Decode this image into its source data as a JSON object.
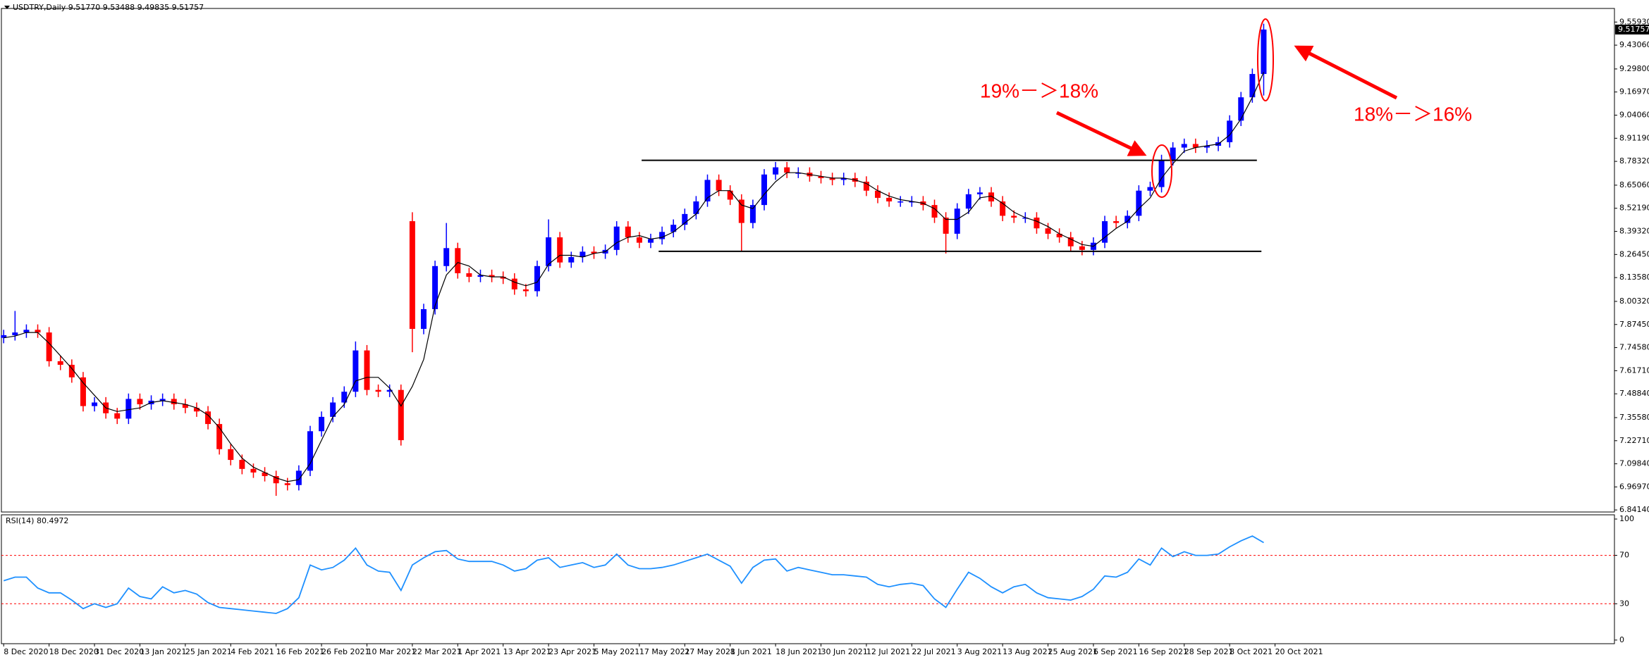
{
  "chart_data": [
    {
      "type": "candlestick",
      "title": "USDTRY,Daily  9.51770 9.53488 9.49835 9.51757",
      "up_color": "#0000ff",
      "down_color": "#ff0000",
      "ma_color": "#000000",
      "xlim": [
        -0.2,
        141.9
      ],
      "ylim": [
        6.83,
        9.635
      ],
      "grid": false,
      "yticks": [
        {
          "value": 9.5593,
          "label": "9.55930"
        },
        {
          "value": 9.4306,
          "label": "9.43060"
        },
        {
          "value": 9.298,
          "label": "9.29800"
        },
        {
          "value": 9.1697,
          "label": "9.16970"
        },
        {
          "value": 9.0406,
          "label": "9.04060"
        },
        {
          "value": 8.9119,
          "label": "8.91190"
        },
        {
          "value": 8.7832,
          "label": "8.78320"
        },
        {
          "value": 8.6506,
          "label": "8.65060"
        },
        {
          "value": 8.5219,
          "label": "8.52190"
        },
        {
          "value": 8.3932,
          "label": "8.39320"
        },
        {
          "value": 8.2645,
          "label": "8.26450"
        },
        {
          "value": 8.1358,
          "label": "8.13580"
        },
        {
          "value": 8.0032,
          "label": "8.00320"
        },
        {
          "value": 7.8745,
          "label": "7.87450"
        },
        {
          "value": 7.7458,
          "label": "7.74580"
        },
        {
          "value": 7.6171,
          "label": "7.61710"
        },
        {
          "value": 7.4884,
          "label": "7.48840"
        },
        {
          "value": 7.3558,
          "label": "7.35580"
        },
        {
          "value": 7.2271,
          "label": "7.22710"
        },
        {
          "value": 7.0984,
          "label": "7.09840"
        },
        {
          "value": 6.9697,
          "label": "6.96970"
        },
        {
          "value": 6.8414,
          "label": "6.84140"
        }
      ],
      "last_price": 9.51757,
      "annotations": [
        "19%－＞18%",
        "18%－＞16%"
      ],
      "lines": [
        {
          "y": 8.789,
          "x": [
            56.2,
            110.4
          ]
        },
        {
          "y": 8.282,
          "x": [
            57.7,
            110.8
          ]
        }
      ],
      "open": [
        7.8,
        7.815,
        7.83,
        7.845,
        7.83,
        7.67,
        7.65,
        7.58,
        7.42,
        7.44,
        7.38,
        7.35,
        7.46,
        7.43,
        7.45,
        7.46,
        7.43,
        7.41,
        7.39,
        7.32,
        7.18,
        7.12,
        7.07,
        7.05,
        7.03,
        6.99,
        6.98,
        7.06,
        7.28,
        7.36,
        7.44,
        7.5,
        7.73,
        7.51,
        7.5,
        7.51,
        8.45,
        7.85,
        7.96,
        8.2,
        8.3,
        8.16,
        8.14,
        8.15,
        8.14,
        8.13,
        8.07,
        8.06,
        8.2,
        8.36,
        8.22,
        8.25,
        8.28,
        8.27,
        8.29,
        8.42,
        8.36,
        8.33,
        8.35,
        8.39,
        8.43,
        8.49,
        8.56,
        8.68,
        8.62,
        8.57,
        8.44,
        8.54,
        8.71,
        8.75,
        8.72,
        8.72,
        8.7,
        8.69,
        8.68,
        8.69,
        8.67,
        8.62,
        8.58,
        8.56,
        8.56,
        8.56,
        8.54,
        8.47,
        8.38,
        8.52,
        8.6,
        8.61,
        8.56,
        8.48,
        8.47,
        8.47,
        8.41,
        8.38,
        8.36,
        8.31,
        8.29,
        8.33,
        8.45,
        8.44,
        8.48,
        8.62,
        8.64,
        8.79,
        8.86,
        8.88,
        8.86,
        8.87,
        8.89,
        9.01,
        9.14,
        9.27
      ],
      "high": [
        7.845,
        7.95,
        7.875,
        7.875,
        7.86,
        7.7,
        7.68,
        7.61,
        7.47,
        7.47,
        7.41,
        7.49,
        7.49,
        7.48,
        7.49,
        7.49,
        7.46,
        7.44,
        7.42,
        7.35,
        7.21,
        7.15,
        7.1,
        7.08,
        7.06,
        7.02,
        7.09,
        7.31,
        7.39,
        7.47,
        7.53,
        7.78,
        7.76,
        7.54,
        7.54,
        7.54,
        8.5,
        7.99,
        8.23,
        8.44,
        8.33,
        8.19,
        8.18,
        8.18,
        8.17,
        8.16,
        8.1,
        8.23,
        8.46,
        8.39,
        8.28,
        8.31,
        8.31,
        8.32,
        8.45,
        8.45,
        8.39,
        8.38,
        8.42,
        8.46,
        8.52,
        8.59,
        8.71,
        8.71,
        8.65,
        8.6,
        8.57,
        8.74,
        8.78,
        8.78,
        8.75,
        8.75,
        8.73,
        8.72,
        8.72,
        8.72,
        8.7,
        8.65,
        8.61,
        8.59,
        8.59,
        8.59,
        8.57,
        8.5,
        8.55,
        8.63,
        8.64,
        8.64,
        8.59,
        8.51,
        8.5,
        8.5,
        8.44,
        8.41,
        8.39,
        8.34,
        8.36,
        8.48,
        8.48,
        8.51,
        8.65,
        8.67,
        8.82,
        8.89,
        8.91,
        8.91,
        8.9,
        8.92,
        9.04,
        9.17,
        9.3,
        9.55
      ],
      "low": [
        7.77,
        7.785,
        7.8,
        7.8,
        7.64,
        7.62,
        7.55,
        7.39,
        7.39,
        7.35,
        7.32,
        7.32,
        7.4,
        7.4,
        7.42,
        7.4,
        7.38,
        7.36,
        7.29,
        7.15,
        7.09,
        7.04,
        7.02,
        7.0,
        6.92,
        6.95,
        6.95,
        7.03,
        7.25,
        7.33,
        7.41,
        7.47,
        7.48,
        7.47,
        7.47,
        7.2,
        7.72,
        7.82,
        7.93,
        8.17,
        8.13,
        8.11,
        8.11,
        8.11,
        8.1,
        8.04,
        8.03,
        8.03,
        8.17,
        8.19,
        8.19,
        8.22,
        8.24,
        8.24,
        8.26,
        8.33,
        8.3,
        8.3,
        8.32,
        8.36,
        8.4,
        8.46,
        8.53,
        8.59,
        8.54,
        8.28,
        8.41,
        8.51,
        8.68,
        8.69,
        8.69,
        8.67,
        8.66,
        8.65,
        8.65,
        8.64,
        8.59,
        8.55,
        8.53,
        8.53,
        8.53,
        8.51,
        8.44,
        8.27,
        8.35,
        8.49,
        8.57,
        8.53,
        8.45,
        8.44,
        8.44,
        8.38,
        8.35,
        8.33,
        8.28,
        8.26,
        8.26,
        8.3,
        8.41,
        8.41,
        8.45,
        8.59,
        8.61,
        8.76,
        8.83,
        8.83,
        8.83,
        8.84,
        8.86,
        8.98,
        9.11,
        9.15
      ],
      "close": [
        7.815,
        7.83,
        7.845,
        7.83,
        7.67,
        7.65,
        7.58,
        7.42,
        7.44,
        7.38,
        7.35,
        7.46,
        7.43,
        7.45,
        7.46,
        7.43,
        7.41,
        7.39,
        7.32,
        7.18,
        7.12,
        7.07,
        7.05,
        7.03,
        6.99,
        6.98,
        7.06,
        7.28,
        7.36,
        7.44,
        7.5,
        7.73,
        7.51,
        7.5,
        7.51,
        7.23,
        7.85,
        7.96,
        8.2,
        8.3,
        8.16,
        8.14,
        8.15,
        8.14,
        8.13,
        8.07,
        8.06,
        8.2,
        8.36,
        8.22,
        8.25,
        8.28,
        8.27,
        8.29,
        8.42,
        8.36,
        8.33,
        8.35,
        8.39,
        8.43,
        8.49,
        8.56,
        8.68,
        8.62,
        8.57,
        8.44,
        8.54,
        8.71,
        8.75,
        8.72,
        8.72,
        8.7,
        8.69,
        8.68,
        8.69,
        8.67,
        8.62,
        8.58,
        8.56,
        8.56,
        8.56,
        8.54,
        8.47,
        8.38,
        8.52,
        8.6,
        8.61,
        8.56,
        8.48,
        8.47,
        8.47,
        8.41,
        8.38,
        8.36,
        8.31,
        8.29,
        8.33,
        8.45,
        8.44,
        8.48,
        8.62,
        8.64,
        8.79,
        8.86,
        8.88,
        8.86,
        8.87,
        8.89,
        9.01,
        9.14,
        9.27,
        9.51757
      ],
      "ma_values": [
        7.8,
        7.81,
        7.83,
        7.83,
        7.77,
        7.7,
        7.63,
        7.55,
        7.48,
        7.41,
        7.39,
        7.4,
        7.41,
        7.44,
        7.45,
        7.44,
        7.43,
        7.41,
        7.37,
        7.3,
        7.21,
        7.13,
        7.08,
        7.05,
        7.02,
        7.0,
        7.01,
        7.1,
        7.23,
        7.36,
        7.43,
        7.56,
        7.58,
        7.58,
        7.52,
        7.42,
        7.53,
        7.68,
        7.98,
        8.15,
        8.22,
        8.2,
        8.15,
        8.14,
        8.14,
        8.11,
        8.09,
        8.11,
        8.21,
        8.26,
        8.26,
        8.25,
        8.27,
        8.28,
        8.33,
        8.36,
        8.37,
        8.35,
        8.36,
        8.39,
        8.44,
        8.49,
        8.58,
        8.62,
        8.62,
        8.54,
        8.52,
        8.6,
        8.67,
        8.72,
        8.72,
        8.71,
        8.7,
        8.69,
        8.69,
        8.68,
        8.66,
        8.62,
        8.59,
        8.57,
        8.56,
        8.55,
        8.52,
        8.46,
        8.46,
        8.5,
        8.58,
        8.59,
        8.55,
        8.5,
        8.47,
        8.45,
        8.42,
        8.38,
        8.35,
        8.32,
        8.31,
        8.36,
        8.41,
        8.45,
        8.52,
        8.58,
        8.69,
        8.77,
        8.84,
        8.86,
        8.87,
        8.88,
        8.93,
        9.02,
        9.14,
        9.28
      ]
    },
    {
      "type": "line",
      "title": "RSI(14) 80.4972",
      "color": "#1e90ff",
      "level_color": "#ff0000",
      "xlim": [
        -0.2,
        141.9
      ],
      "ylim": [
        -3,
        103.5
      ],
      "yticks": [
        100,
        70,
        30,
        0
      ],
      "levels": [
        70,
        30
      ],
      "xticks": [
        {
          "value": 0,
          "label": "8 Dec 2020"
        },
        {
          "value": 4,
          "label": "18 Dec 2020"
        },
        {
          "value": 8,
          "label": "31 Dec 2020"
        },
        {
          "value": 12,
          "label": "13 Jan 2021"
        },
        {
          "value": 16,
          "label": "25 Jan 2021"
        },
        {
          "value": 20,
          "label": "4 Feb 2021"
        },
        {
          "value": 24,
          "label": "16 Feb 2021"
        },
        {
          "value": 28,
          "label": "26 Feb 2021"
        },
        {
          "value": 32,
          "label": "10 Mar 2021"
        },
        {
          "value": 36,
          "label": "22 Mar 2021"
        },
        {
          "value": 40,
          "label": "1 Apr 2021"
        },
        {
          "value": 44,
          "label": "13 Apr 2021"
        },
        {
          "value": 48,
          "label": "23 Apr 2021"
        },
        {
          "value": 52,
          "label": "5 May 2021"
        },
        {
          "value": 56,
          "label": "17 May 2021"
        },
        {
          "value": 60,
          "label": "27 May 2021"
        },
        {
          "value": 64,
          "label": "8 Jun 2021"
        },
        {
          "value": 68,
          "label": "18 Jun 2021"
        },
        {
          "value": 72,
          "label": "30 Jun 2021"
        },
        {
          "value": 76,
          "label": "12 Jul 2021"
        },
        {
          "value": 80,
          "label": "22 Jul 2021"
        },
        {
          "value": 84,
          "label": "3 Aug 2021"
        },
        {
          "value": 88,
          "label": "13 Aug 2021"
        },
        {
          "value": 92,
          "label": "25 Aug 2021"
        },
        {
          "value": 96,
          "label": "6 Sep 2021"
        },
        {
          "value": 100,
          "label": "16 Sep 2021"
        },
        {
          "value": 104,
          "label": "28 Sep 2021"
        },
        {
          "value": 108,
          "label": "8 Oct 2021"
        },
        {
          "value": 112,
          "label": "20 Oct 2021"
        }
      ],
      "values": [
        49,
        52,
        52,
        43,
        39,
        39,
        33,
        26,
        30,
        27,
        30,
        43,
        36,
        34,
        44,
        39,
        41,
        38,
        31,
        27,
        26,
        25,
        24,
        23,
        22,
        26,
        35,
        62,
        58,
        60,
        66,
        76,
        62,
        57,
        56,
        41,
        62,
        68,
        73,
        74,
        67,
        65,
        65,
        65,
        62,
        57,
        59,
        66,
        68,
        60,
        62,
        64,
        60,
        62,
        71,
        62,
        59,
        59,
        60,
        62,
        65,
        68,
        71,
        66,
        61,
        47,
        60,
        66,
        67,
        57,
        60,
        58,
        56,
        54,
        54,
        53,
        52,
        46,
        44,
        46,
        47,
        45,
        34,
        27,
        42,
        56,
        51,
        44,
        39,
        44,
        46,
        39,
        35,
        34,
        33,
        36,
        42,
        53,
        52,
        56,
        67,
        62,
        76,
        69,
        73,
        70,
        70,
        71,
        77,
        82,
        86,
        80.4972
      ]
    }
  ]
}
